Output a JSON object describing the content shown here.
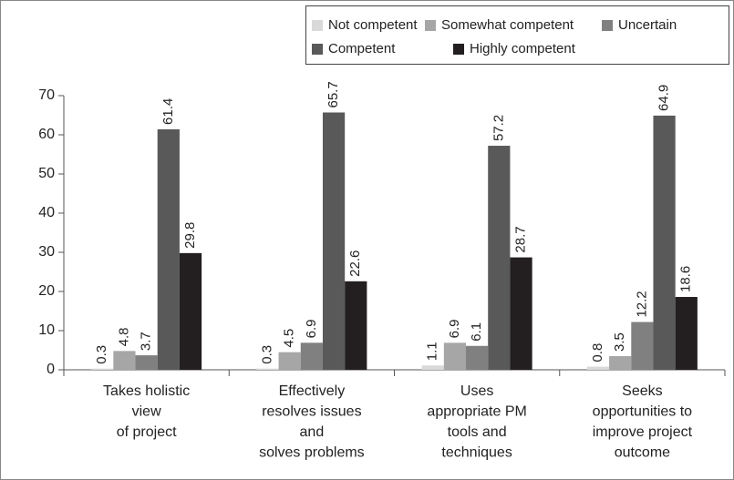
{
  "chart_data": {
    "type": "bar",
    "categories": [
      [
        "Takes holistic",
        "view",
        "of project"
      ],
      [
        "Effectively",
        "resolves issues",
        "and",
        "solves problems"
      ],
      [
        "Uses",
        "appropriate PM",
        "tools and",
        "techniques"
      ],
      [
        "Seeks",
        "opportunities to",
        "improve project",
        "outcome"
      ]
    ],
    "series": [
      {
        "name": "Not competent",
        "color": "#d9d9d9",
        "values": [
          0.3,
          0.3,
          1.1,
          0.8
        ]
      },
      {
        "name": "Somewhat competent",
        "color": "#a6a6a6",
        "values": [
          4.8,
          4.5,
          6.9,
          3.5
        ]
      },
      {
        "name": "Uncertain",
        "color": "#808080",
        "values": [
          3.7,
          6.9,
          6.1,
          12.2
        ]
      },
      {
        "name": "Competent",
        "color": "#595959",
        "values": [
          61.4,
          65.7,
          57.2,
          64.9
        ]
      },
      {
        "name": "Highly competent",
        "color": "#231f20",
        "values": [
          29.8,
          22.6,
          28.7,
          18.6
        ]
      }
    ],
    "ylim": [
      0,
      70
    ],
    "yticks": [
      0,
      10,
      20,
      30,
      40,
      50,
      60,
      70
    ],
    "legend": "top-right"
  }
}
